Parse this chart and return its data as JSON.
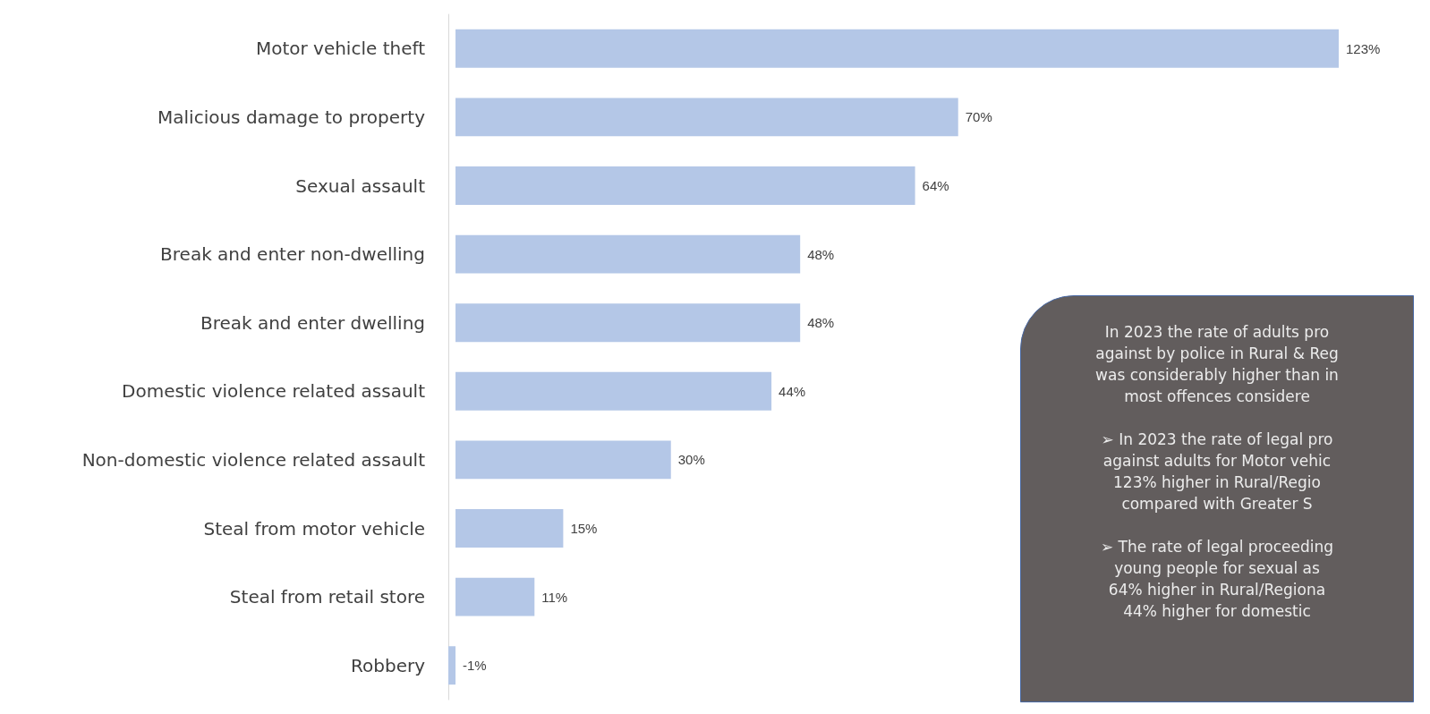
{
  "chart_data": {
    "type": "bar",
    "orientation": "horizontal",
    "categories": [
      "Motor vehicle theft",
      "Malicious damage to property",
      "Sexual assault",
      "Break and enter non-dwelling",
      "Break and enter dwelling",
      "Domestic violence related assault",
      "Non-domestic violence related assault",
      "Steal from motor vehicle",
      "Steal from retail store",
      "Robbery"
    ],
    "values": [
      123,
      70,
      64,
      48,
      48,
      44,
      30,
      15,
      11,
      -1
    ],
    "value_labels": [
      "123%",
      "70%",
      "64%",
      "48%",
      "48%",
      "44%",
      "30%",
      "15%",
      "11%",
      "-1%"
    ],
    "color": "#b4c7e7",
    "grid": false,
    "annotations": [
      "In 2023 the rate of adults pro\nagainst by police in Rural & Reg\nwas considerably higher than in\nmost offences considere",
      "➢  In 2023 the rate of legal pro\nagainst adults for Motor vehic\n123% higher in Rural/Regio\ncompared with Greater S",
      "➢  The rate of legal proceeding\nyoung people for sexual as\n64% higher in Rural/Regiona\n44% higher for domestic"
    ]
  }
}
